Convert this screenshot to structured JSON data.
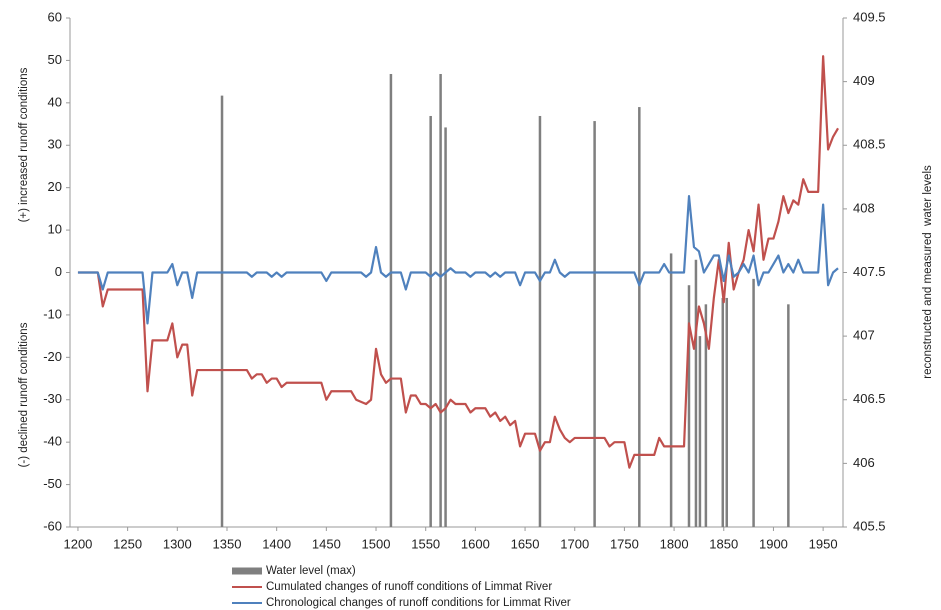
{
  "chart_data": {
    "type": "combo",
    "y_title_upper": "(+) increased runoff conditions",
    "y_title_lower": "(-) declined runoff conditions",
    "y2_title": "reconstructed and measured  water levels",
    "xlim": [
      1192,
      1970
    ],
    "xticks": [
      1200,
      1250,
      1300,
      1350,
      1400,
      1450,
      1500,
      1550,
      1600,
      1650,
      1700,
      1750,
      1800,
      1850,
      1900,
      1950
    ],
    "ylim": [
      -60,
      60
    ],
    "yticks": [
      -60,
      -50,
      -40,
      -30,
      -20,
      -10,
      0,
      10,
      20,
      30,
      40,
      50,
      60
    ],
    "y2lim": [
      405.5,
      409.5
    ],
    "y2ticks": [
      405.5,
      406,
      406.5,
      407,
      407.5,
      408,
      408.5,
      409,
      409.5
    ],
    "grid": false,
    "series": [
      {
        "name": "Water level (max)",
        "type": "bar",
        "axis": "y2",
        "color": "#7f7f7f",
        "x": [
          1345,
          1515,
          1555,
          1565,
          1570,
          1665,
          1720,
          1765,
          1797,
          1815,
          1822,
          1826,
          1832,
          1849,
          1853,
          1880,
          1915
        ],
        "values": [
          408.89,
          409.06,
          408.73,
          409.06,
          408.64,
          408.73,
          408.69,
          408.8,
          407.65,
          407.4,
          407.6,
          407.0,
          407.25,
          407.3,
          407.3,
          407.45,
          407.25
        ]
      },
      {
        "name": "Cumulated changes of runoff conditions of Limmat River",
        "type": "line",
        "color": "#c0504d",
        "x": [
          1200,
          1220,
          1225,
          1230,
          1265,
          1270,
          1275,
          1290,
          1295,
          1300,
          1305,
          1310,
          1315,
          1320,
          1370,
          1375,
          1380,
          1385,
          1390,
          1395,
          1400,
          1405,
          1410,
          1445,
          1450,
          1455,
          1475,
          1480,
          1490,
          1495,
          1500,
          1505,
          1510,
          1515,
          1525,
          1530,
          1535,
          1540,
          1545,
          1550,
          1555,
          1560,
          1565,
          1570,
          1575,
          1580,
          1590,
          1595,
          1600,
          1610,
          1615,
          1620,
          1625,
          1630,
          1635,
          1640,
          1645,
          1650,
          1660,
          1665,
          1670,
          1675,
          1680,
          1685,
          1690,
          1695,
          1700,
          1730,
          1735,
          1740,
          1750,
          1755,
          1760,
          1780,
          1785,
          1790,
          1810,
          1815,
          1820,
          1825,
          1830,
          1835,
          1840,
          1845,
          1850,
          1855,
          1860,
          1865,
          1870,
          1875,
          1880,
          1885,
          1890,
          1895,
          1900,
          1905,
          1910,
          1915,
          1920,
          1925,
          1930,
          1935,
          1940,
          1945,
          1950,
          1955,
          1960,
          1965
        ],
        "values": [
          0,
          0,
          -8,
          -4,
          -4,
          -28,
          -16,
          -16,
          -12,
          -20,
          -17,
          -17,
          -29,
          -23,
          -23,
          -25,
          -24,
          -24,
          -26,
          -25,
          -25,
          -27,
          -26,
          -26,
          -30,
          -28,
          -28,
          -30,
          -31,
          -30,
          -18,
          -24,
          -26,
          -25,
          -25,
          -33,
          -29,
          -29,
          -31,
          -31,
          -32,
          -31,
          -33,
          -32,
          -30,
          -31,
          -31,
          -33,
          -32,
          -32,
          -34,
          -33,
          -35,
          -34,
          -36,
          -35,
          -41,
          -38,
          -38,
          -42,
          -40,
          -40,
          -34,
          -37,
          -39,
          -40,
          -39,
          -39,
          -41,
          -40,
          -40,
          -46,
          -43,
          -43,
          -39,
          -41,
          -41,
          -12,
          -18,
          -8,
          -12,
          -18,
          -6,
          3,
          -7,
          7,
          -4,
          0,
          3,
          10,
          5,
          16,
          3,
          8,
          8,
          12,
          18,
          14,
          17,
          16,
          22,
          19,
          19,
          19,
          51,
          29,
          32,
          34
        ]
      },
      {
        "name": "Chronological changes of runoff conditions for Limmat River",
        "type": "line",
        "color": "#4f81bd",
        "x": [
          1200,
          1220,
          1225,
          1230,
          1265,
          1270,
          1275,
          1290,
          1295,
          1300,
          1305,
          1310,
          1315,
          1320,
          1370,
          1375,
          1380,
          1390,
          1395,
          1400,
          1405,
          1410,
          1445,
          1450,
          1455,
          1485,
          1490,
          1495,
          1500,
          1505,
          1510,
          1515,
          1525,
          1530,
          1535,
          1550,
          1555,
          1560,
          1565,
          1570,
          1575,
          1580,
          1590,
          1595,
          1600,
          1610,
          1615,
          1620,
          1625,
          1630,
          1640,
          1645,
          1650,
          1660,
          1665,
          1670,
          1675,
          1680,
          1685,
          1690,
          1695,
          1760,
          1765,
          1770,
          1785,
          1790,
          1795,
          1810,
          1815,
          1820,
          1825,
          1830,
          1835,
          1840,
          1845,
          1850,
          1855,
          1860,
          1865,
          1870,
          1875,
          1880,
          1885,
          1890,
          1895,
          1900,
          1905,
          1910,
          1915,
          1920,
          1925,
          1930,
          1945,
          1950,
          1955,
          1960,
          1965
        ],
        "values": [
          0,
          0,
          -4,
          0,
          0,
          -12,
          0,
          0,
          2,
          -3,
          0,
          0,
          -6,
          0,
          0,
          -1,
          0,
          0,
          -1,
          0,
          -1,
          0,
          0,
          -2,
          0,
          0,
          -1,
          0,
          6,
          0,
          -1,
          0,
          0,
          -4,
          0,
          0,
          -1,
          0,
          -1,
          0,
          1,
          0,
          0,
          -1,
          0,
          0,
          -1,
          0,
          -1,
          0,
          0,
          -3,
          0,
          0,
          -2,
          0,
          0,
          3,
          0,
          -1,
          0,
          0,
          -3,
          0,
          0,
          2,
          0,
          0,
          18,
          6,
          5,
          0,
          2,
          4,
          4,
          -2,
          4,
          -1,
          0,
          2,
          0,
          4,
          -3,
          0,
          0,
          2,
          4,
          0,
          2,
          0,
          3,
          0,
          0,
          16,
          -3,
          0,
          1
        ]
      }
    ]
  }
}
